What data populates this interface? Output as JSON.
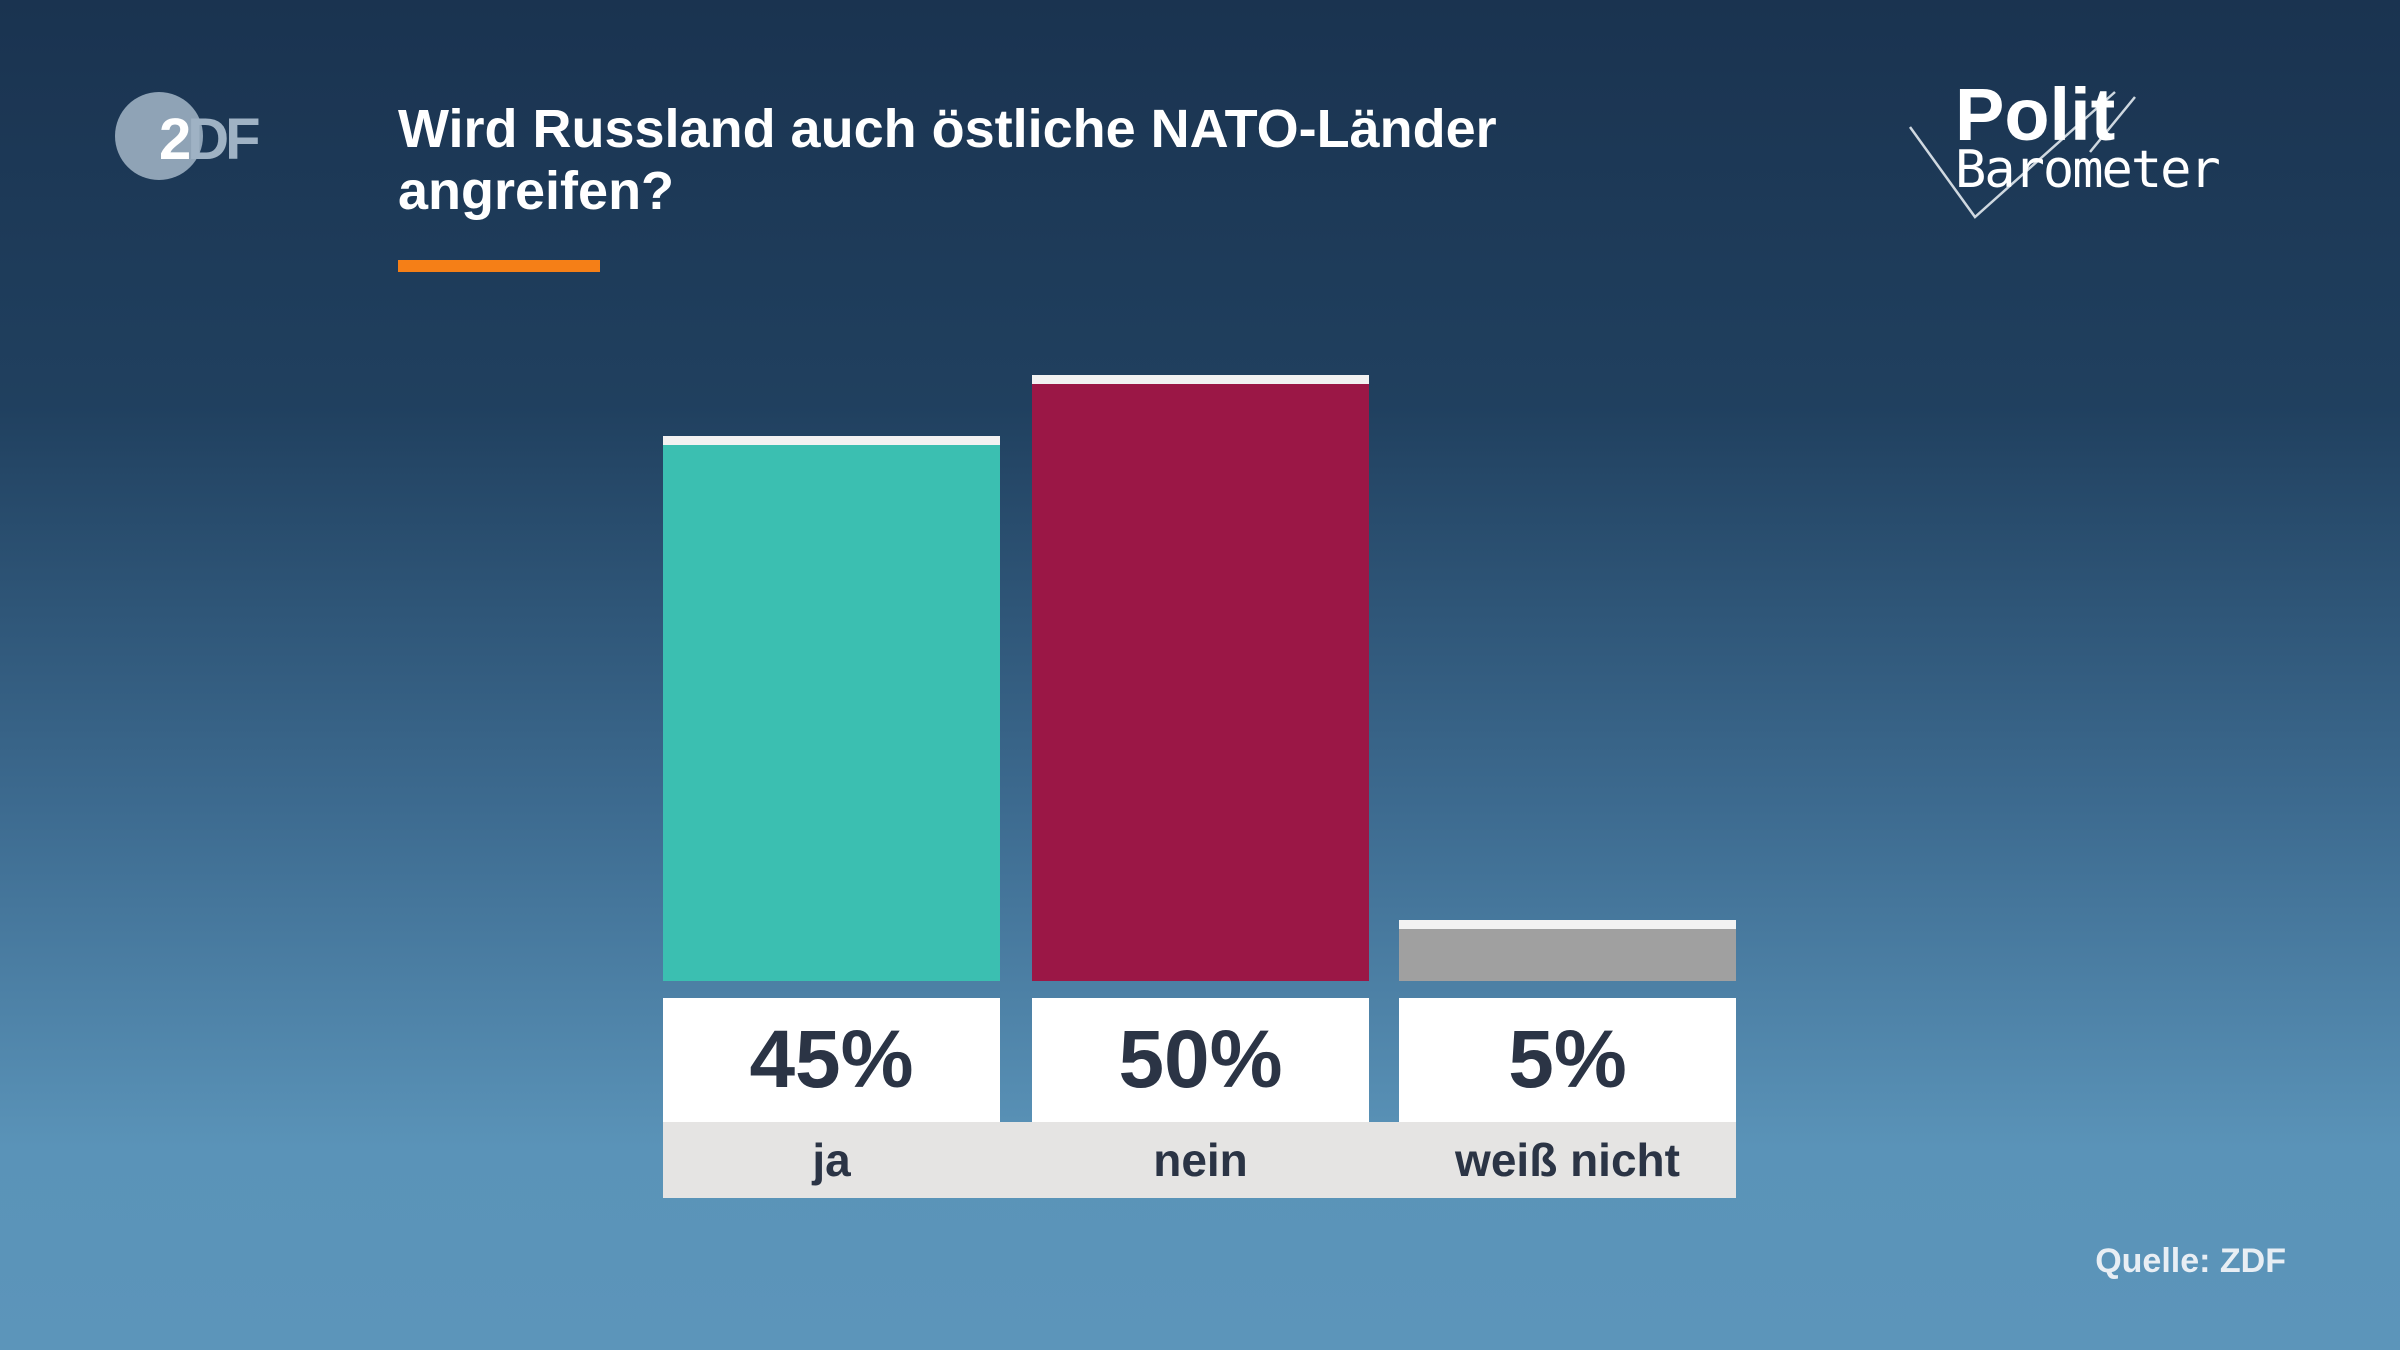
{
  "logo": {
    "text_main": "2",
    "text_rest": "DF"
  },
  "brand": {
    "polit": "Polit",
    "barometer": "Barometer"
  },
  "chart_data": {
    "type": "bar",
    "title": "Wird Russland auch östliche NATO-Länder angreifen?",
    "categories": [
      "ja",
      "nein",
      "weiß nicht"
    ],
    "values": [
      45,
      50,
      5
    ],
    "value_labels": [
      "45%",
      "50%",
      "5%"
    ],
    "colors": [
      "#3bbfb1",
      "#9b1746",
      "#a0a0a0"
    ],
    "ylim": [
      0,
      50
    ],
    "grid": false
  },
  "accent_color": "#f57f17",
  "source": "Quelle: ZDF"
}
